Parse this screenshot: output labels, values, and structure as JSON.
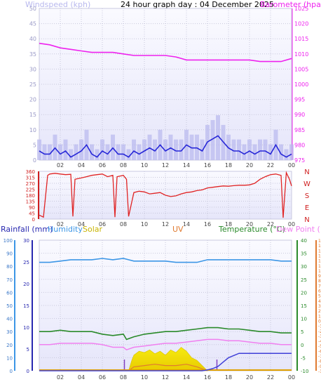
{
  "header": {
    "title": "24 hour graph day : 04 December 2025",
    "wind_label": "Windspeed (kph)",
    "baro_label": "Barometer (hpa)"
  },
  "footer_labels": {
    "rain": "Rainfall (mm)",
    "humidity": "Humidity",
    "solar": "Solar",
    "uv": "UV",
    "temp": "Temperature (°C)",
    "dew": "Dew Point (°C)"
  },
  "colors": {
    "wind": "#2828d8",
    "gust": "#b8b8ee",
    "baro": "#ee22ee",
    "dir": "#e02424",
    "temp": "#2a8a2a",
    "dew": "#f080f0",
    "humidity": "#3c96e6",
    "rain": "#4040d8",
    "solar": "#f0e000",
    "uv": "#e07a30",
    "panel_bg": "#ececfc"
  },
  "chart_data": [
    {
      "type": "line",
      "name": "wind-barometer",
      "x_ticks": [
        "02",
        "04",
        "06",
        "08",
        "10",
        "12",
        "14",
        "16",
        "18",
        "20",
        "22",
        "00"
      ],
      "ylim_left": [
        0,
        50
      ],
      "ylim_right": [
        975,
        1025
      ],
      "left_ticks": [
        0,
        5,
        10,
        15,
        20,
        25,
        30,
        35,
        40,
        45,
        50
      ],
      "right_ticks": [
        975,
        980,
        985,
        990,
        995,
        1000,
        1005,
        1010,
        1015,
        1020,
        1025
      ],
      "series": [
        {
          "name": "Windspeed (kph)",
          "axis": "left",
          "x": [
            0,
            0.5,
            1,
            1.5,
            2,
            2.5,
            3,
            3.5,
            4,
            4.5,
            5,
            5.5,
            6,
            6.5,
            7,
            7.5,
            8,
            8.5,
            9,
            9.5,
            10,
            10.5,
            11,
            11.5,
            12,
            12.5,
            13,
            13.5,
            14,
            14.5,
            15,
            15.5,
            16,
            16.5,
            17,
            17.5,
            18,
            18.5,
            19,
            19.5,
            20,
            20.5,
            21,
            21.5,
            22,
            22.5,
            23,
            23.5,
            24
          ],
          "values": [
            3,
            2,
            2,
            4,
            2,
            3,
            1,
            2,
            3,
            5,
            2,
            1,
            3,
            2,
            4,
            2,
            2,
            1,
            3,
            2,
            3,
            4,
            3,
            5,
            3,
            4,
            3,
            3,
            5,
            4,
            4,
            3,
            6,
            7,
            8,
            6,
            4,
            3,
            3,
            2,
            3,
            2,
            3,
            3,
            2,
            5,
            2,
            1,
            2
          ]
        },
        {
          "name": "Barometer (hpa)",
          "axis": "right",
          "x": [
            0,
            1,
            2,
            3,
            4,
            5,
            6,
            7,
            8,
            9,
            10,
            11,
            12,
            13,
            14,
            15,
            16,
            17,
            18,
            19,
            20,
            21,
            22,
            23,
            24
          ],
          "values": [
            1013.5,
            1013,
            1012,
            1011.5,
            1011,
            1010.5,
            1010.5,
            1010.5,
            1010,
            1009.5,
            1009.5,
            1009.5,
            1009.5,
            1009,
            1008,
            1008,
            1008,
            1008,
            1008,
            1008,
            1008,
            1007.5,
            1007.5,
            1007.5,
            1008.5
          ]
        }
      ]
    },
    {
      "type": "line",
      "name": "wind-direction",
      "x_ticks": [
        "02",
        "04",
        "06",
        "08",
        "10",
        "12",
        "14",
        "16",
        "18",
        "20",
        "22",
        "00"
      ],
      "ylim": [
        0,
        360
      ],
      "left_ticks": [
        0,
        45,
        90,
        135,
        180,
        225,
        270,
        315,
        360
      ],
      "compass": [
        "N",
        "W",
        "S",
        "E",
        "N"
      ],
      "series": [
        {
          "name": "Wind Direction",
          "x": [
            0,
            0.4,
            0.8,
            1,
            1.5,
            2,
            2.5,
            3,
            3.2,
            3.4,
            4,
            4.5,
            5,
            5.5,
            6,
            6.5,
            7,
            7.2,
            7.4,
            8,
            8.3,
            8.5,
            9,
            9.5,
            10,
            10.5,
            11,
            11.5,
            12,
            12.5,
            13,
            13.5,
            14,
            14.5,
            15,
            15.5,
            16,
            16.5,
            17,
            17.5,
            18,
            18.5,
            19,
            19.5,
            20,
            20.5,
            21,
            21.5,
            22,
            22.5,
            23,
            23.2,
            23.5,
            23.8,
            24
          ],
          "values": [
            30,
            15,
            330,
            340,
            345,
            340,
            335,
            338,
            20,
            300,
            310,
            320,
            330,
            335,
            340,
            320,
            330,
            15,
            320,
            330,
            300,
            20,
            200,
            210,
            205,
            190,
            195,
            200,
            180,
            170,
            175,
            190,
            200,
            205,
            215,
            220,
            235,
            240,
            245,
            250,
            248,
            252,
            255,
            255,
            258,
            270,
            300,
            320,
            335,
            340,
            330,
            10,
            350,
            300,
            250
          ]
        }
      ]
    },
    {
      "type": "line",
      "name": "temperature-humidity-rain",
      "x_ticks": [
        "02",
        "04",
        "06",
        "08",
        "10",
        "12",
        "14",
        "16",
        "18",
        "20",
        "22",
        "00"
      ],
      "ylim_pct": [
        0,
        100
      ],
      "ylim_rain": [
        0,
        30
      ],
      "ylim_temp": [
        -10,
        40
      ],
      "ylim_dew": [
        -10,
        16
      ],
      "pct_ticks": [
        0,
        10,
        20,
        30,
        40,
        50,
        60,
        70,
        80,
        90,
        100
      ],
      "rain_ticks": [
        0,
        5,
        10,
        15,
        20,
        25,
        30
      ],
      "temp_ticks": [
        -10,
        -5,
        0,
        5,
        10,
        15,
        20,
        25,
        30,
        35,
        40
      ],
      "dew_ticks": [
        -10,
        -9,
        -8,
        -7,
        -6,
        -5,
        -4,
        -3,
        -2,
        -1,
        0,
        1,
        2,
        3,
        4,
        5,
        6,
        7,
        8,
        9,
        10,
        11,
        12,
        13,
        14,
        15,
        16
      ],
      "series": [
        {
          "name": "Humidity",
          "axis": "pct",
          "x": [
            0,
            1,
            2,
            3,
            4,
            5,
            6,
            7,
            8,
            8.5,
            9,
            10,
            11,
            12,
            13,
            14,
            15,
            16,
            17,
            18,
            19,
            20,
            21,
            22,
            23,
            24
          ],
          "values": [
            83,
            83,
            84,
            85,
            85,
            85,
            86,
            85,
            86,
            85,
            84,
            84,
            84,
            84,
            83,
            83,
            83,
            85,
            85,
            85,
            85,
            85,
            85,
            85,
            84,
            84
          ]
        },
        {
          "name": "Temperature (°C)",
          "axis": "temp",
          "x": [
            0,
            1,
            2,
            3,
            4,
            5,
            6,
            7,
            8,
            8.3,
            9,
            10,
            11,
            12,
            13,
            14,
            15,
            16,
            17,
            18,
            19,
            20,
            21,
            22,
            23,
            24
          ],
          "values": [
            5,
            5,
            5.5,
            5,
            5,
            5,
            4,
            3.5,
            4,
            2,
            3,
            4,
            4.5,
            5,
            5,
            5.5,
            6,
            6.5,
            6.5,
            6,
            6,
            5.5,
            5,
            5,
            4.5,
            4.5
          ]
        },
        {
          "name": "Dew Point (°C)",
          "axis": "temp",
          "x": [
            0,
            1,
            2,
            3,
            4,
            5,
            6,
            7,
            8,
            8.3,
            9,
            10,
            11,
            12,
            13,
            14,
            15,
            16,
            17,
            18,
            19,
            20,
            21,
            22,
            23,
            24
          ],
          "values": [
            0,
            0,
            0.5,
            0.5,
            0.5,
            0.5,
            0,
            -1,
            -1,
            -2,
            -1,
            -0.5,
            0,
            0.5,
            0.5,
            1,
            1.5,
            2,
            2,
            1.5,
            1.5,
            1,
            0.5,
            0.5,
            0,
            0
          ]
        },
        {
          "name": "Rainfall (mm)",
          "axis": "rain",
          "x": [
            0,
            15,
            15.5,
            16,
            16.5,
            17,
            17.5,
            18,
            18.5,
            19,
            19.5,
            20,
            24
          ],
          "values": [
            0,
            0,
            0,
            0.2,
            0.5,
            1,
            2,
            3,
            3.5,
            4,
            4,
            4,
            4
          ]
        },
        {
          "name": "Solar",
          "axis": "pct",
          "x": [
            8.5,
            8.8,
            9,
            9.5,
            10,
            10.5,
            11,
            11.5,
            12,
            12.5,
            13,
            13.5,
            14,
            14.5,
            15,
            15.5,
            16
          ],
          "values": [
            0,
            8,
            12,
            15,
            14,
            16,
            13,
            15,
            12,
            16,
            14,
            18,
            15,
            10,
            8,
            4,
            0
          ]
        },
        {
          "name": "UV",
          "axis": "pct",
          "x": [
            8.5,
            9,
            10,
            11,
            12,
            13,
            14,
            15,
            16
          ],
          "values": [
            0,
            3,
            4,
            5,
            4,
            4,
            5,
            3,
            0
          ]
        }
      ]
    }
  ]
}
